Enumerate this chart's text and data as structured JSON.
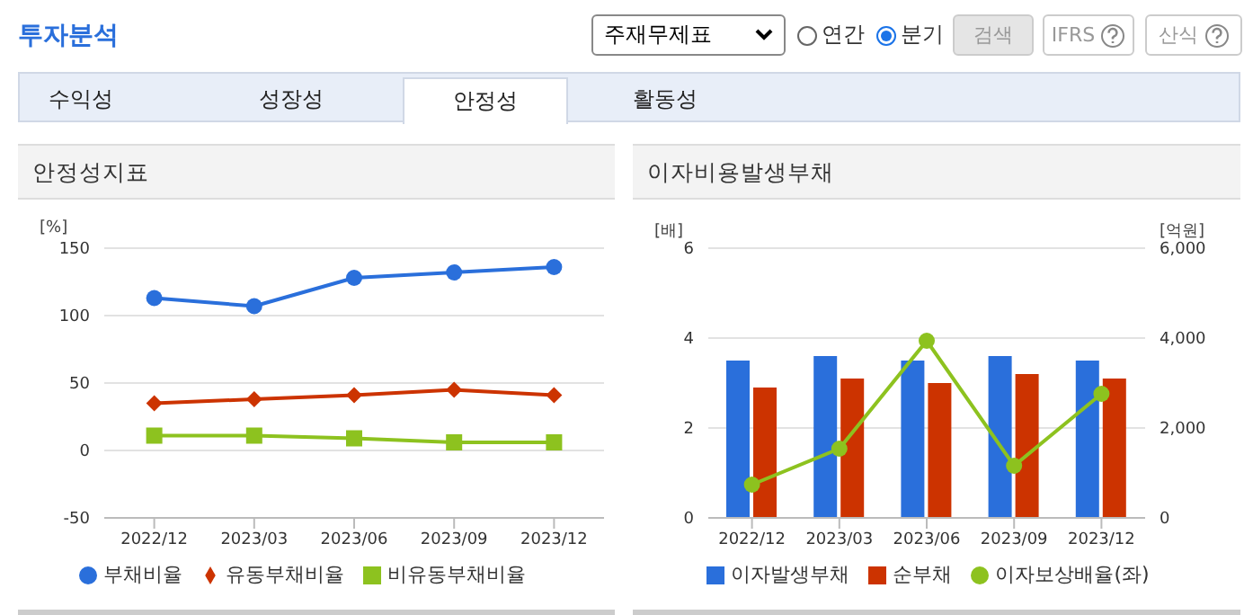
{
  "chart_data": [
    {
      "type": "line",
      "title": "안정성지표",
      "ylabel": "[%]",
      "categories": [
        "2022/12",
        "2023/03",
        "2023/06",
        "2023/09",
        "2023/12"
      ],
      "ylim": [
        -50,
        150
      ],
      "yticks": [
        -50,
        0,
        50,
        100,
        150
      ],
      "grid": "y",
      "legend": "bottom",
      "annotations": [
        "투자분석",
        "주재무제표",
        "연간",
        "분기",
        "검색",
        "IFRS",
        "산식",
        "수익성",
        "성장성",
        "안정성",
        "활동성"
      ],
      "series": [
        {
          "name": "부채비율",
          "color": "#2a6fdb",
          "marker": "circle",
          "values": [
            113,
            107,
            128,
            132,
            136
          ]
        },
        {
          "name": "유동부채비율",
          "color": "#cc3300",
          "marker": "diamond",
          "values": [
            35,
            38,
            41,
            45,
            41
          ]
        },
        {
          "name": "비유동부채비율",
          "color": "#8dc21f",
          "marker": "square",
          "values": [
            11,
            11,
            9,
            6,
            6
          ]
        }
      ]
    },
    {
      "type": "bar",
      "title": "이자비용발생부채",
      "ylabel": "[배]",
      "y2label": "[억원]",
      "categories": [
        "2022/12",
        "2023/03",
        "2023/06",
        "2023/09",
        "2023/12"
      ],
      "ylim": [
        0,
        6
      ],
      "yticks": [
        0,
        2,
        4,
        6
      ],
      "y2lim": [
        0,
        6000
      ],
      "y2ticks": [
        0,
        {
          "value": 2000,
          "label": "2,000"
        },
        {
          "value": 4000,
          "label": "4,000"
        },
        {
          "value": 6000,
          "label": "6,000"
        }
      ],
      "grid": "y",
      "legend": "bottom",
      "series": [
        {
          "name": "이자발생부채",
          "color": "#2a6fdb",
          "axis": "y2",
          "values": [
            3500,
            3600,
            3500,
            3600,
            3500
          ]
        },
        {
          "name": "순부채",
          "color": "#cc3300",
          "axis": "y2",
          "values": [
            2900,
            3100,
            3000,
            3200,
            3100
          ]
        },
        {
          "name": "이자보상배율(좌)",
          "type": "line",
          "color": "#8dc21f",
          "axis": "y",
          "marker": "circle",
          "values": [
            0.74,
            1.54,
            3.94,
            1.16,
            2.76
          ]
        }
      ]
    }
  ]
}
